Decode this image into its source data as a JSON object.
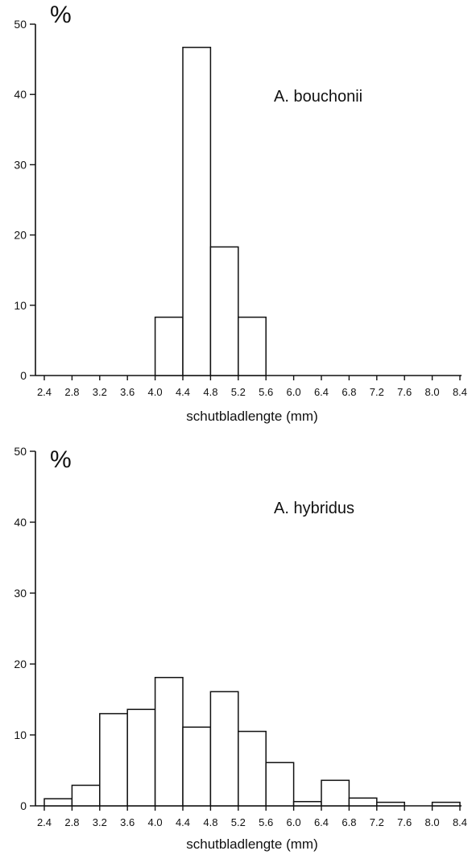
{
  "chart_data": [
    {
      "type": "bar",
      "unit_label": "%",
      "annotation": "A. bouchonii",
      "xlabel": "schutbladlengte (mm)",
      "ylim": [
        0,
        50
      ],
      "yticks": [
        0,
        10,
        20,
        30,
        40,
        50
      ],
      "xticks": [
        "2.4",
        "2.8",
        "3.2",
        "3.6",
        "4.0",
        "4.4",
        "4.8",
        "5.2",
        "5.6",
        "6.0",
        "6.4",
        "6.8",
        "7.2",
        "7.6",
        "8.0",
        "8.4"
      ],
      "bins": [
        {
          "from": 4.0,
          "to": 4.4,
          "value": 8.3
        },
        {
          "from": 4.4,
          "to": 4.8,
          "value": 46.7
        },
        {
          "from": 4.8,
          "to": 5.2,
          "value": 18.3
        },
        {
          "from": 5.2,
          "to": 5.6,
          "value": 8.3
        }
      ]
    },
    {
      "type": "bar",
      "unit_label": "%",
      "annotation": "A. hybridus",
      "xlabel": "schutbladlengte (mm)",
      "ylim": [
        0,
        50
      ],
      "yticks": [
        0,
        10,
        20,
        30,
        40,
        50
      ],
      "xticks": [
        "2.4",
        "2.8",
        "3.2",
        "3.6",
        "4.0",
        "4.4",
        "4.8",
        "5.2",
        "5.6",
        "6.0",
        "6.4",
        "6.8",
        "7.2",
        "7.6",
        "8.0",
        "8.4"
      ],
      "bins": [
        {
          "from": 2.4,
          "to": 2.8,
          "value": 1.0
        },
        {
          "from": 2.8,
          "to": 3.2,
          "value": 2.9
        },
        {
          "from": 3.2,
          "to": 3.6,
          "value": 13.0
        },
        {
          "from": 3.6,
          "to": 4.0,
          "value": 13.6
        },
        {
          "from": 4.0,
          "to": 4.4,
          "value": 18.1
        },
        {
          "from": 4.4,
          "to": 4.8,
          "value": 11.1
        },
        {
          "from": 4.8,
          "to": 5.2,
          "value": 16.1
        },
        {
          "from": 5.2,
          "to": 5.6,
          "value": 10.5
        },
        {
          "from": 5.6,
          "to": 6.0,
          "value": 6.1
        },
        {
          "from": 6.0,
          "to": 6.4,
          "value": 0.6
        },
        {
          "from": 6.4,
          "to": 6.8,
          "value": 3.6
        },
        {
          "from": 6.8,
          "to": 7.2,
          "value": 1.1
        },
        {
          "from": 7.2,
          "to": 7.6,
          "value": 0.5
        },
        {
          "from": 8.0,
          "to": 8.4,
          "value": 0.5
        }
      ]
    }
  ]
}
